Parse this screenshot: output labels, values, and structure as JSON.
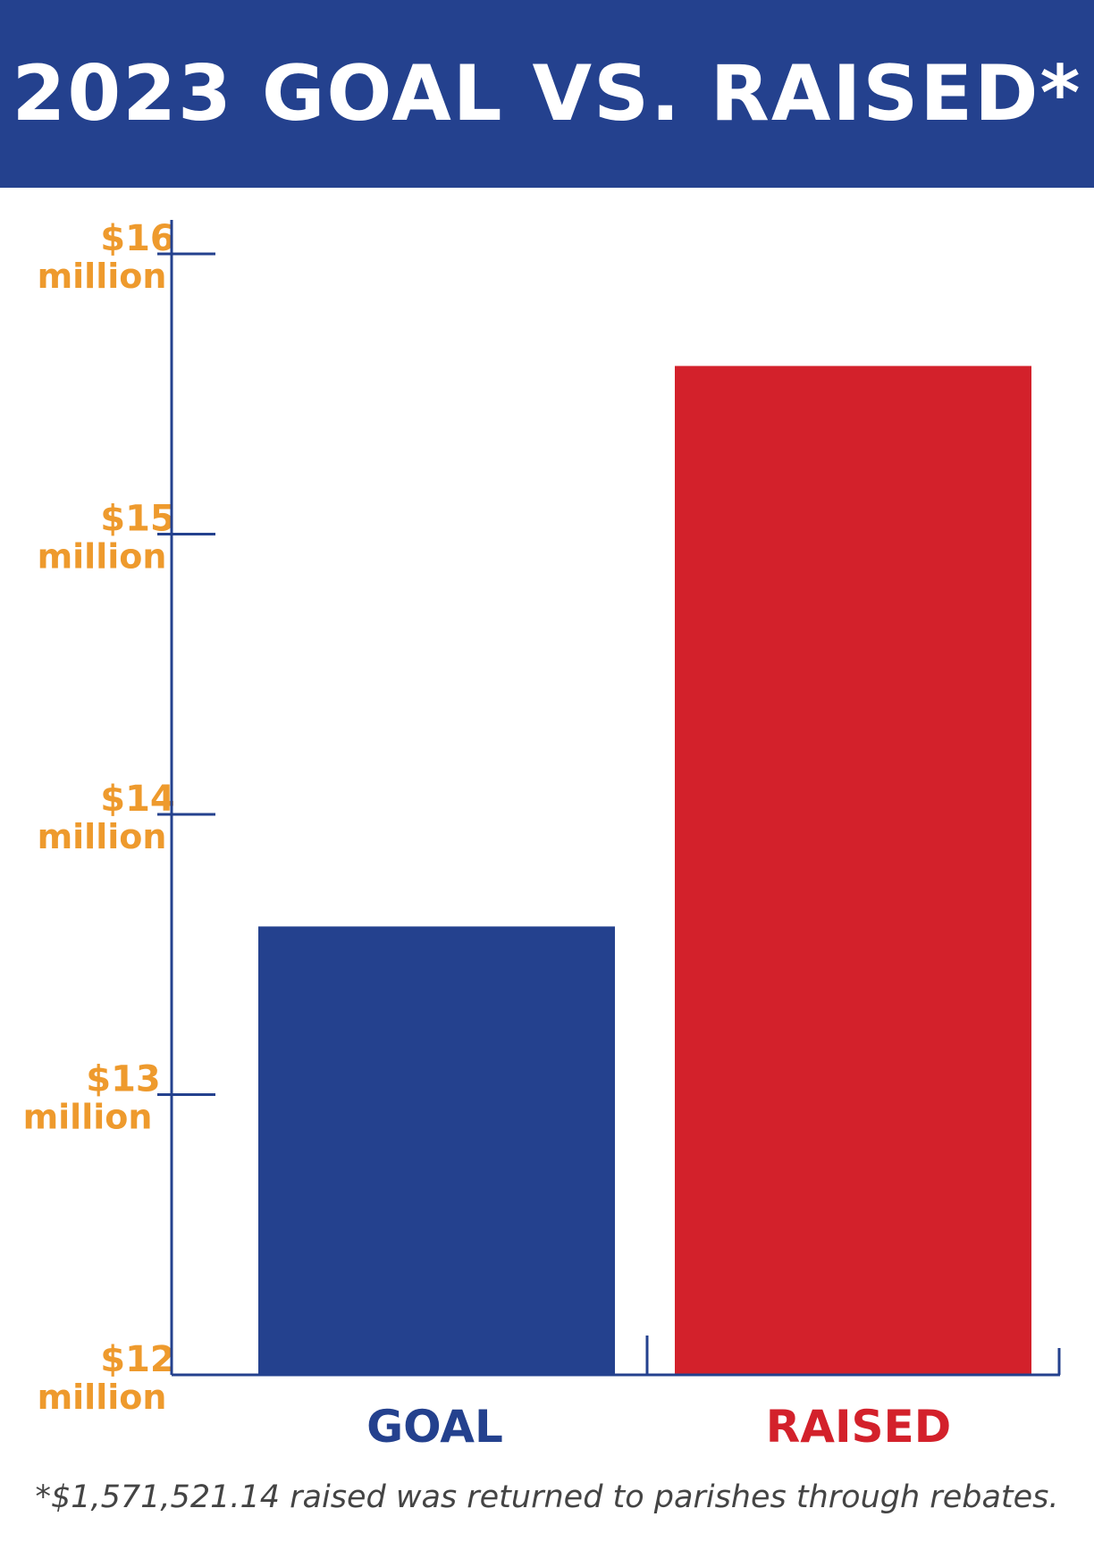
{
  "title": "2023 GOAL VS. RAISED*",
  "footnote": "*$1,571,521.14 raised was returned to parishes through rebates.",
  "colors": {
    "header": "#24418e",
    "axis": "#24418e",
    "tick_label": "#ee9a2d",
    "goal": "#24418e",
    "raised": "#d3212b"
  },
  "chart_data": {
    "type": "bar",
    "title": "2023 GOAL VS. RAISED*",
    "categories": [
      "GOAL",
      "RAISED"
    ],
    "values": [
      13.6,
      15.6
    ],
    "bar_colors": [
      "#24418e",
      "#d3212b"
    ],
    "unit": "million dollars",
    "ylim": [
      12,
      16
    ],
    "yticks": [
      {
        "value": 16,
        "amount": "$16",
        "unit": "million"
      },
      {
        "value": 15,
        "amount": "$15",
        "unit": "million"
      },
      {
        "value": 14,
        "amount": "$14",
        "unit": "million"
      },
      {
        "value": 13,
        "amount": "$13",
        "unit": "million"
      },
      {
        "value": 12,
        "amount": "$12",
        "unit": "million"
      }
    ],
    "grid": false,
    "legend": "none"
  }
}
